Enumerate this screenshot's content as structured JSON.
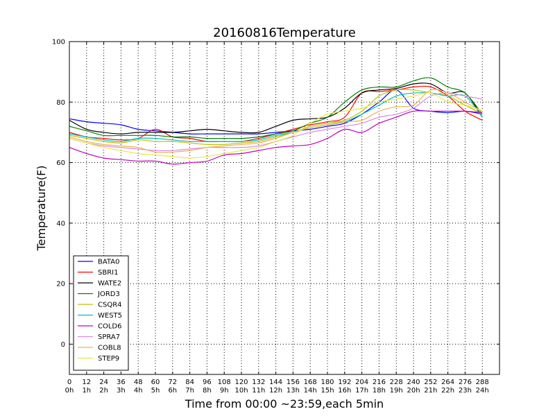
{
  "chart_data": {
    "type": "line",
    "title": "20160816Temperature",
    "xlabel": "Time from 00:00 ~23:59,each 5min",
    "ylabel": "Temperature(F)",
    "xlim": [
      0,
      300
    ],
    "ylim": [
      -10,
      100
    ],
    "grid": true,
    "legend_position": "lower-left",
    "y_ticks": [
      0,
      20,
      40,
      60,
      80,
      100
    ],
    "x_ticks": [
      {
        "value": 0,
        "label": "0",
        "hour": "0h"
      },
      {
        "value": 12,
        "label": "12",
        "hour": "1h"
      },
      {
        "value": 24,
        "label": "24",
        "hour": "2h"
      },
      {
        "value": 36,
        "label": "36",
        "hour": "3h"
      },
      {
        "value": 48,
        "label": "48",
        "hour": "4h"
      },
      {
        "value": 60,
        "label": "60",
        "hour": "5h"
      },
      {
        "value": 72,
        "label": "72",
        "hour": "6h"
      },
      {
        "value": 84,
        "label": "84",
        "hour": "7h"
      },
      {
        "value": 96,
        "label": "96",
        "hour": "8h"
      },
      {
        "value": 108,
        "label": "108",
        "hour": "9h"
      },
      {
        "value": 120,
        "label": "120",
        "hour": "10h"
      },
      {
        "value": 132,
        "label": "132",
        "hour": "11h"
      },
      {
        "value": 144,
        "label": "144",
        "hour": "12h"
      },
      {
        "value": 156,
        "label": "156",
        "hour": "13h"
      },
      {
        "value": 168,
        "label": "168",
        "hour": "14h"
      },
      {
        "value": 180,
        "label": "180",
        "hour": "15h"
      },
      {
        "value": 192,
        "label": "192",
        "hour": "16h"
      },
      {
        "value": 204,
        "label": "204",
        "hour": "17h"
      },
      {
        "value": 216,
        "label": "216",
        "hour": "18h"
      },
      {
        "value": 228,
        "label": "228",
        "hour": "19h"
      },
      {
        "value": 240,
        "label": "240",
        "hour": "20h"
      },
      {
        "value": 252,
        "label": "252",
        "hour": "21h"
      },
      {
        "value": 264,
        "label": "264",
        "hour": "22h"
      },
      {
        "value": 276,
        "label": "276",
        "hour": "23h"
      },
      {
        "value": 288,
        "label": "288",
        "hour": "24h"
      }
    ],
    "x": [
      0,
      12,
      24,
      36,
      48,
      60,
      72,
      84,
      96,
      108,
      120,
      132,
      144,
      156,
      168,
      180,
      192,
      204,
      216,
      228,
      240,
      252,
      264,
      276,
      288
    ],
    "series": [
      {
        "name": "BATA0",
        "color": "#0000ff",
        "values": [
          74.5,
          73.5,
          73,
          72.5,
          71,
          70.5,
          70,
          69.5,
          69.5,
          69.5,
          69.5,
          69.5,
          70,
          70.5,
          71,
          72,
          73,
          76,
          80,
          84,
          78,
          77,
          76.5,
          77,
          76
        ]
      },
      {
        "name": "SBRI1",
        "color": "#ff0000",
        "values": [
          70,
          68.5,
          68,
          67.5,
          68,
          71,
          68.5,
          68,
          67,
          67,
          67,
          68,
          69.5,
          71,
          72.5,
          73.5,
          75,
          83,
          83.5,
          84,
          85,
          85,
          82,
          77,
          74
        ]
      },
      {
        "name": "WATE2",
        "color": "#000000",
        "values": [
          74,
          71,
          70,
          69.5,
          70,
          70,
          70,
          70.5,
          71,
          70.5,
          70,
          70,
          72,
          74,
          74.5,
          75,
          78,
          83,
          84,
          84.5,
          86,
          86,
          83,
          83,
          75
        ]
      },
      {
        "name": "JORD3",
        "color": "#008000",
        "values": [
          72,
          70.5,
          69,
          69,
          69,
          69,
          68.5,
          68.5,
          68,
          68,
          68,
          68.5,
          69.5,
          70.5,
          73,
          75,
          80,
          84,
          85,
          85,
          87,
          88,
          85,
          83,
          76
        ]
      },
      {
        "name": "CSQR4",
        "color": "#bfbf00",
        "values": [
          69,
          68,
          67,
          66.5,
          67.5,
          67,
          67,
          66.5,
          66,
          66,
          66.5,
          67,
          68.5,
          70,
          72,
          73,
          74,
          77,
          82,
          84,
          84,
          83,
          82,
          79,
          76
        ]
      },
      {
        "name": "WEST5",
        "color": "#00bfbf",
        "values": [
          69.5,
          68.5,
          67.5,
          67,
          68,
          68,
          67.5,
          67,
          67,
          67,
          67,
          67.5,
          69,
          70,
          71.5,
          72.5,
          73.5,
          76,
          79,
          82,
          83,
          83,
          82,
          82,
          75
        ]
      },
      {
        "name": "COLD6",
        "color": "#bf00bf",
        "values": [
          65,
          63,
          61.5,
          61,
          60.5,
          60.5,
          59.5,
          60,
          60.5,
          62.5,
          63,
          64,
          65,
          65.5,
          66,
          68,
          71,
          70,
          73,
          75,
          77,
          77,
          77,
          77,
          76.5
        ]
      },
      {
        "name": "SPRA7",
        "color": "#dd88dd",
        "values": [
          68,
          66.5,
          65.5,
          65,
          64.5,
          64,
          64,
          64.5,
          65,
          65,
          65,
          65.5,
          67,
          68.5,
          70,
          71,
          72,
          73,
          75,
          76,
          78,
          82,
          83,
          82,
          81
        ]
      },
      {
        "name": "COBL8",
        "color": "#f0b050",
        "values": [
          68.5,
          67,
          66,
          65.5,
          65,
          63.5,
          63.5,
          64,
          65,
          65.5,
          66,
          66.5,
          68,
          70,
          71.5,
          72.5,
          73.5,
          74,
          77,
          78.5,
          79,
          84,
          83,
          80,
          77
        ]
      },
      {
        "name": "STEP9",
        "color": "#e8e840",
        "values": [
          68,
          66.5,
          65,
          64,
          63,
          62.5,
          62,
          61.5,
          62,
          63,
          64,
          65,
          67,
          69,
          73,
          76,
          77,
          78,
          80,
          81,
          82,
          83,
          80,
          79,
          77
        ]
      }
    ]
  }
}
